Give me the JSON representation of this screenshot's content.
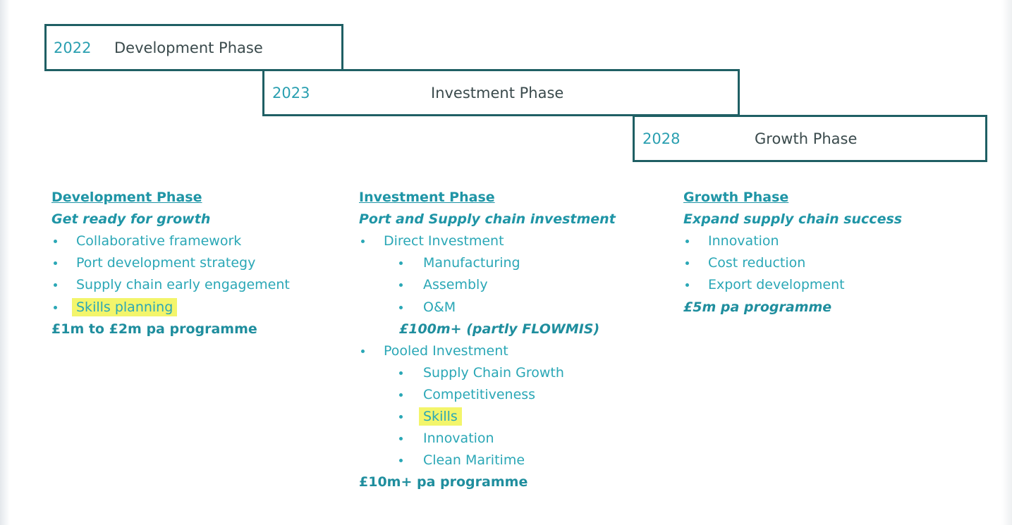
{
  "timeline": [
    {
      "year": "2022",
      "name": "Development Phase"
    },
    {
      "year": "2023",
      "name": "Investment Phase"
    },
    {
      "year": "2028",
      "name": "Growth Phase"
    }
  ],
  "columns": [
    {
      "heading": "Development Phase",
      "subtitle": "Get ready for growth",
      "items": [
        {
          "text": "Collaborative framework"
        },
        {
          "text": "Port development strategy"
        },
        {
          "text": "Supply chain early engagement"
        },
        {
          "text": "Skills planning",
          "highlight": true
        }
      ],
      "funding": "£1m to £2m pa programme",
      "funding_italic": false
    },
    {
      "heading": "Investment Phase",
      "subtitle": "Port and Supply chain investment",
      "items": [
        {
          "text": "Direct Investment",
          "items": [
            {
              "text": "Manufacturing"
            },
            {
              "text": "Assembly"
            },
            {
              "text": "O&M"
            }
          ],
          "funding": "£100m+ (partly FLOWMIS)",
          "funding_italic": true
        },
        {
          "text": "Pooled Investment",
          "items": [
            {
              "text": "Supply Chain Growth"
            },
            {
              "text": "Competitiveness"
            },
            {
              "text": "Skills",
              "highlight": true
            },
            {
              "text": "Innovation"
            },
            {
              "text": "Clean Maritime"
            }
          ]
        }
      ],
      "funding": "£10m+ pa programme",
      "funding_italic": false
    },
    {
      "heading": "Growth Phase",
      "subtitle": "Expand supply chain success",
      "items": [
        {
          "text": "Innovation"
        },
        {
          "text": "Cost reduction"
        },
        {
          "text": "Export development"
        }
      ],
      "funding": "£5m pa programme",
      "funding_italic": true
    }
  ]
}
